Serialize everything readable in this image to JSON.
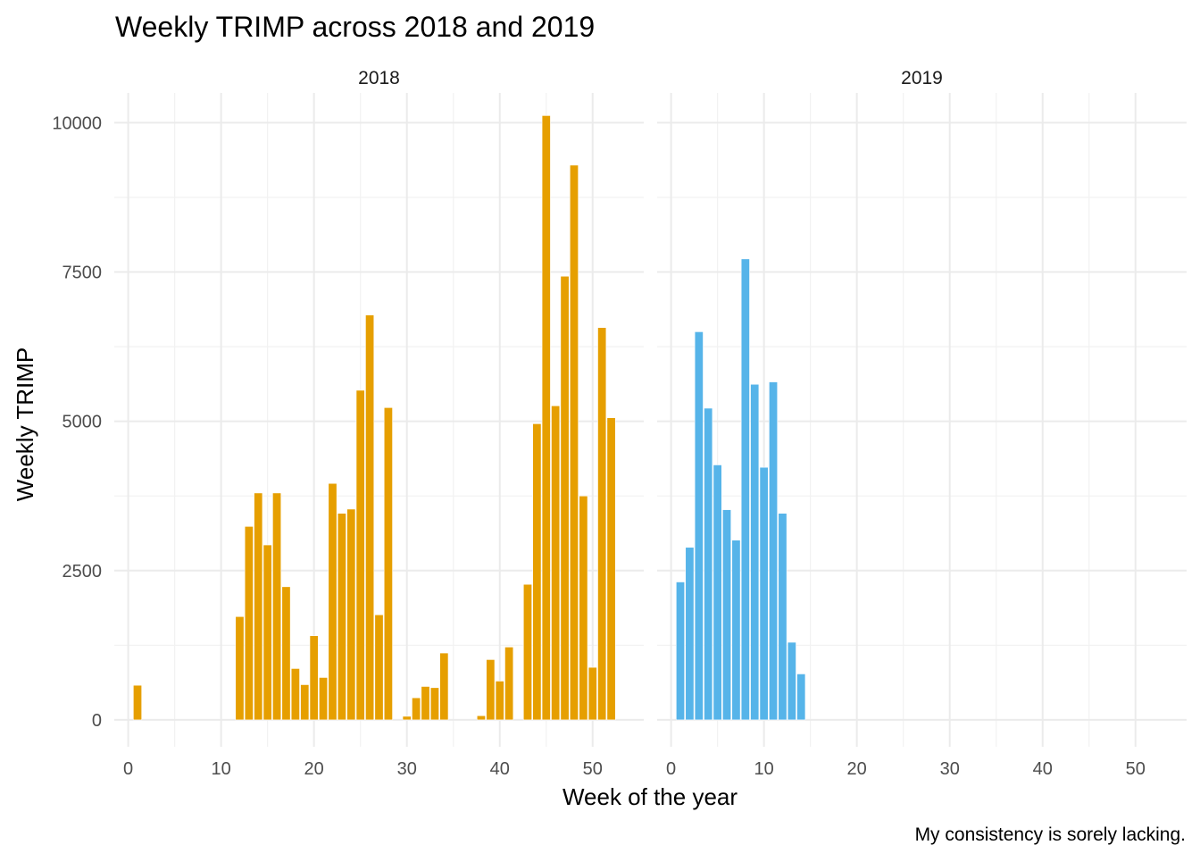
{
  "chart_data": {
    "type": "bar",
    "title": "Weekly TRIMP across 2018 and 2019",
    "xlabel": "Week of the year",
    "ylabel": "Weekly TRIMP",
    "caption": "My consistency is sorely lacking.",
    "xlim": [
      -1.5,
      55.5
    ],
    "ylim": [
      -450,
      10500
    ],
    "x_ticks": [
      0,
      10,
      20,
      30,
      40,
      50
    ],
    "y_ticks": [
      0,
      2500,
      5000,
      7500,
      10000
    ],
    "grid": true,
    "legend": "none",
    "facets": [
      {
        "label": "2018",
        "color": "#E69F00",
        "weeks": [
          1,
          12,
          13,
          14,
          15,
          16,
          17,
          18,
          19,
          20,
          21,
          22,
          23,
          24,
          25,
          26,
          27,
          28,
          30,
          31,
          32,
          33,
          34,
          38,
          39,
          40,
          41,
          43,
          44,
          45,
          46,
          47,
          48,
          49,
          50,
          51,
          52
        ],
        "values": [
          580,
          1730,
          3240,
          3800,
          2930,
          3800,
          2230,
          860,
          590,
          1410,
          710,
          3960,
          3460,
          3530,
          5520,
          6780,
          1760,
          5230,
          60,
          370,
          560,
          540,
          1120,
          70,
          1010,
          650,
          1220,
          2270,
          4960,
          10120,
          5260,
          7430,
          9290,
          3750,
          880,
          6570,
          5060
        ]
      },
      {
        "label": "2019",
        "color": "#56B4E9",
        "weeks": [
          1,
          2,
          3,
          4,
          5,
          6,
          7,
          8,
          9,
          10,
          11,
          12,
          13,
          14
        ],
        "values": [
          2310,
          2890,
          6500,
          5220,
          4270,
          3520,
          3010,
          7720,
          5620,
          4230,
          5660,
          3460,
          1300,
          770
        ]
      }
    ]
  }
}
